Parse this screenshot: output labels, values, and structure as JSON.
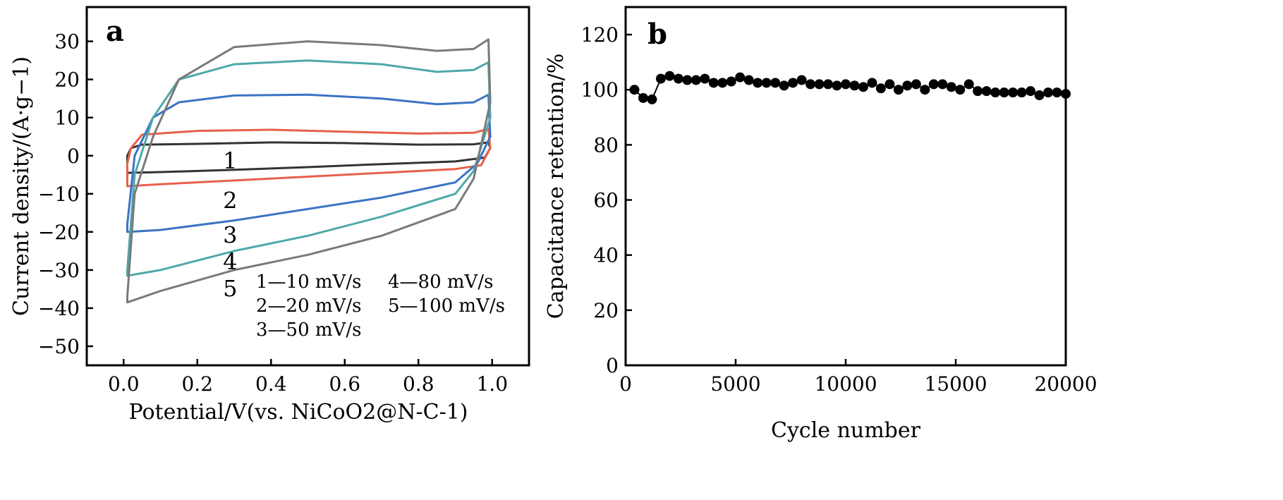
{
  "chart_data": [
    {
      "panel": "a",
      "type": "line",
      "xlabel": "Potential/V(vs. NiCoO2@N-C-1)",
      "ylabel": "Current density/(A·g−1)",
      "xlim": [
        -0.1,
        1.1
      ],
      "ylim": [
        -55,
        39
      ],
      "xticks": [
        0.0,
        0.2,
        0.4,
        0.6,
        0.8,
        1.0
      ],
      "xtick_labels": [
        "0.0",
        "0.2",
        "0.4",
        "0.6",
        "0.8",
        "1.0"
      ],
      "yticks": [
        30,
        20,
        10,
        0,
        -10,
        -20,
        -30,
        -40,
        -50
      ],
      "ytick_labels": [
        "30",
        "20",
        "10",
        "0",
        "−10",
        "−20",
        "−30",
        "−40",
        "−50"
      ],
      "grid": false,
      "series": [
        {
          "name": "1—10 mV/s",
          "label": "1",
          "color": "#333333",
          "upper": [
            [
              0.01,
              0
            ],
            [
              0.02,
              2
            ],
            [
              0.05,
              2.9
            ],
            [
              0.2,
              3.1
            ],
            [
              0.4,
              3.5
            ],
            [
              0.6,
              3.3
            ],
            [
              0.8,
              2.9
            ],
            [
              0.95,
              3.0
            ],
            [
              0.99,
              3.5
            ],
            [
              0.995,
              2
            ]
          ],
          "lower": [
            [
              0.995,
              2
            ],
            [
              0.98,
              -0.5
            ],
            [
              0.9,
              -1.5
            ],
            [
              0.7,
              -2.2
            ],
            [
              0.5,
              -3.0
            ],
            [
              0.3,
              -3.7
            ],
            [
              0.1,
              -4.3
            ],
            [
              0.01,
              -4.5
            ],
            [
              0.01,
              0
            ]
          ]
        },
        {
          "name": "2—20 mV/s",
          "label": "2",
          "color": "#e8604a",
          "upper": [
            [
              0.01,
              -2
            ],
            [
              0.02,
              2
            ],
            [
              0.05,
              5.5
            ],
            [
              0.2,
              6.5
            ],
            [
              0.4,
              6.8
            ],
            [
              0.6,
              6.3
            ],
            [
              0.8,
              5.8
            ],
            [
              0.95,
              6.0
            ],
            [
              0.99,
              7.0
            ],
            [
              0.995,
              2
            ]
          ],
          "lower": [
            [
              0.995,
              2
            ],
            [
              0.97,
              -2.5
            ],
            [
              0.9,
              -3.5
            ],
            [
              0.7,
              -4.5
            ],
            [
              0.5,
              -5.5
            ],
            [
              0.3,
              -6.5
            ],
            [
              0.1,
              -7.5
            ],
            [
              0.01,
              -8
            ],
            [
              0.01,
              -2
            ]
          ]
        },
        {
          "name": "3—50 mV/s",
          "label": "3",
          "color": "#3a73c4",
          "upper": [
            [
              0.01,
              -18
            ],
            [
              0.03,
              0
            ],
            [
              0.08,
              10
            ],
            [
              0.15,
              14
            ],
            [
              0.3,
              15.8
            ],
            [
              0.5,
              16
            ],
            [
              0.7,
              15
            ],
            [
              0.85,
              13.5
            ],
            [
              0.95,
              14
            ],
            [
              0.99,
              16
            ],
            [
              0.995,
              5
            ]
          ],
          "lower": [
            [
              0.995,
              5
            ],
            [
              0.96,
              -2
            ],
            [
              0.9,
              -7
            ],
            [
              0.7,
              -11
            ],
            [
              0.5,
              -14
            ],
            [
              0.3,
              -17
            ],
            [
              0.1,
              -19.5
            ],
            [
              0.01,
              -20
            ],
            [
              0.01,
              -18
            ]
          ]
        },
        {
          "name": "4—80 mV/s",
          "label": "4",
          "color": "#4fa8a8",
          "upper": [
            [
              0.01,
              -30
            ],
            [
              0.03,
              -5
            ],
            [
              0.08,
              10
            ],
            [
              0.15,
              20
            ],
            [
              0.3,
              24
            ],
            [
              0.5,
              25
            ],
            [
              0.7,
              24
            ],
            [
              0.85,
              22
            ],
            [
              0.95,
              22.5
            ],
            [
              0.99,
              24.5
            ],
            [
              0.995,
              10
            ]
          ],
          "lower": [
            [
              0.995,
              10
            ],
            [
              0.95,
              -4
            ],
            [
              0.9,
              -10
            ],
            [
              0.7,
              -16
            ],
            [
              0.5,
              -21
            ],
            [
              0.3,
              -25
            ],
            [
              0.1,
              -30
            ],
            [
              0.01,
              -31.5
            ],
            [
              0.01,
              -30
            ]
          ]
        },
        {
          "name": "5—100 mV/s",
          "label": "5",
          "color": "#7a7a7a",
          "upper": [
            [
              0.01,
              -37
            ],
            [
              0.03,
              -10
            ],
            [
              0.08,
              5
            ],
            [
              0.15,
              20
            ],
            [
              0.3,
              28.5
            ],
            [
              0.5,
              30
            ],
            [
              0.7,
              29
            ],
            [
              0.85,
              27.5
            ],
            [
              0.95,
              28
            ],
            [
              0.99,
              30.5
            ],
            [
              0.995,
              14
            ]
          ],
          "lower": [
            [
              0.995,
              14
            ],
            [
              0.95,
              -6
            ],
            [
              0.9,
              -14
            ],
            [
              0.7,
              -21
            ],
            [
              0.5,
              -26
            ],
            [
              0.3,
              -30
            ],
            [
              0.1,
              -35.5
            ],
            [
              0.01,
              -38.5
            ],
            [
              0.01,
              -37
            ]
          ]
        }
      ],
      "curve_labels": [
        {
          "text": "1",
          "x": 0.27,
          "y": -1.5
        },
        {
          "text": "2",
          "x": 0.27,
          "y": -12
        },
        {
          "text": "3",
          "x": 0.27,
          "y": -21
        },
        {
          "text": "4",
          "x": 0.27,
          "y": -28
        },
        {
          "text": "5",
          "x": 0.27,
          "y": -35
        }
      ],
      "legend": {
        "placement": "bottom-right",
        "entries": [
          "1—10 mV/s",
          "4—80 mV/s",
          "2—20 mV/s",
          "5—100 mV/s",
          "3—50 mV/s"
        ]
      }
    },
    {
      "panel": "b",
      "type": "scatter",
      "xlabel": "Cycle number",
      "ylabel": "Capacitance retention/%",
      "xlim": [
        0,
        20000
      ],
      "ylim": [
        0,
        130
      ],
      "xticks": [
        0,
        5000,
        10000,
        15000,
        20000
      ],
      "xtick_labels": [
        "0",
        "5000",
        "10000",
        "15000",
        "20000"
      ],
      "yticks": [
        0,
        20,
        40,
        60,
        80,
        100,
        120
      ],
      "ytick_labels": [
        "0",
        "20",
        "40",
        "60",
        "80",
        "100",
        "120"
      ],
      "grid": false,
      "marker_color": "#000000",
      "x": [
        400,
        800,
        1200,
        1600,
        2000,
        2400,
        2800,
        3200,
        3600,
        4000,
        4400,
        4800,
        5200,
        5600,
        6000,
        6400,
        6800,
        7200,
        7600,
        8000,
        8400,
        8800,
        9200,
        9600,
        10000,
        10400,
        10800,
        11200,
        11600,
        12000,
        12400,
        12800,
        13200,
        13600,
        14000,
        14400,
        14800,
        15200,
        15600,
        16000,
        16400,
        16800,
        17200,
        17600,
        18000,
        18400,
        18800,
        19200,
        19600,
        20000
      ],
      "y": [
        100,
        97,
        96.5,
        104,
        105,
        104,
        103.5,
        103.5,
        104,
        102.5,
        102.5,
        103,
        104.5,
        103.5,
        102.5,
        102.5,
        102.5,
        101.5,
        102.5,
        103.5,
        102,
        102,
        102,
        101.5,
        102,
        101.5,
        101,
        102.5,
        100.5,
        102,
        100,
        101.5,
        102,
        100,
        102,
        102,
        101,
        100,
        102,
        99.5,
        99.5,
        99,
        99,
        99,
        99,
        99.5,
        98,
        99,
        99,
        98.5
      ]
    }
  ]
}
